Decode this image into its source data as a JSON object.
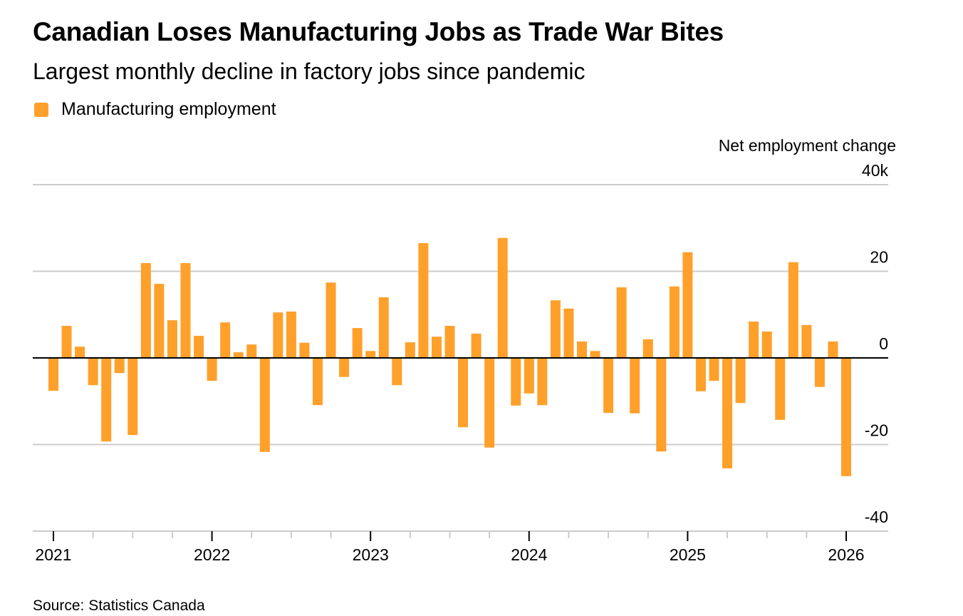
{
  "title": "Canadian Loses Manufacturing Jobs as Trade War Bites",
  "subtitle": "Largest monthly decline in factory jobs since pandemic",
  "legend": {
    "label": "Manufacturing employment"
  },
  "source": "Source: Statistics Canada",
  "colors": {
    "bar": "#ffa02a",
    "grid": "#cccccc",
    "zero": "#000000"
  },
  "chart_data": {
    "type": "bar",
    "title": "Canadian Loses Manufacturing Jobs as Trade War Bites",
    "ylabel": "Net employment change",
    "ylim": [
      -40,
      40
    ],
    "y_ticks": [
      {
        "v": 40,
        "label": "40k"
      },
      {
        "v": 20,
        "label": "20"
      },
      {
        "v": 0,
        "label": "0"
      },
      {
        "v": -20,
        "label": "-20"
      },
      {
        "v": -40,
        "label": "-40"
      }
    ],
    "x_start": "2021-01",
    "x_ticks": [
      "2021",
      "2022",
      "2023",
      "2024",
      "2025",
      "2026"
    ],
    "grid": true,
    "series": [
      {
        "name": "Manufacturing employment",
        "values": [
          -7.6,
          7.4,
          2.6,
          -6.3,
          -19.3,
          -3.5,
          -17.8,
          21.9,
          17.1,
          8.7,
          21.9,
          5.1,
          -5.3,
          8.2,
          1.3,
          3.1,
          -21.7,
          10.5,
          10.7,
          3.5,
          -10.9,
          17.4,
          -4.4,
          6.9,
          1.6,
          14.0,
          -6.3,
          3.6,
          26.5,
          4.9,
          7.4,
          -16.0,
          5.6,
          -20.7,
          27.7,
          -11.0,
          -8.2,
          -10.9,
          13.3,
          11.4,
          3.8,
          1.6,
          -12.7,
          16.3,
          -12.8,
          4.3,
          -21.6,
          16.5,
          24.4,
          -7.7,
          -5.3,
          -25.5,
          -10.4,
          8.4,
          6.1,
          -14.3,
          22.1,
          7.6,
          -6.7,
          3.8,
          -27.3
        ]
      }
    ]
  }
}
